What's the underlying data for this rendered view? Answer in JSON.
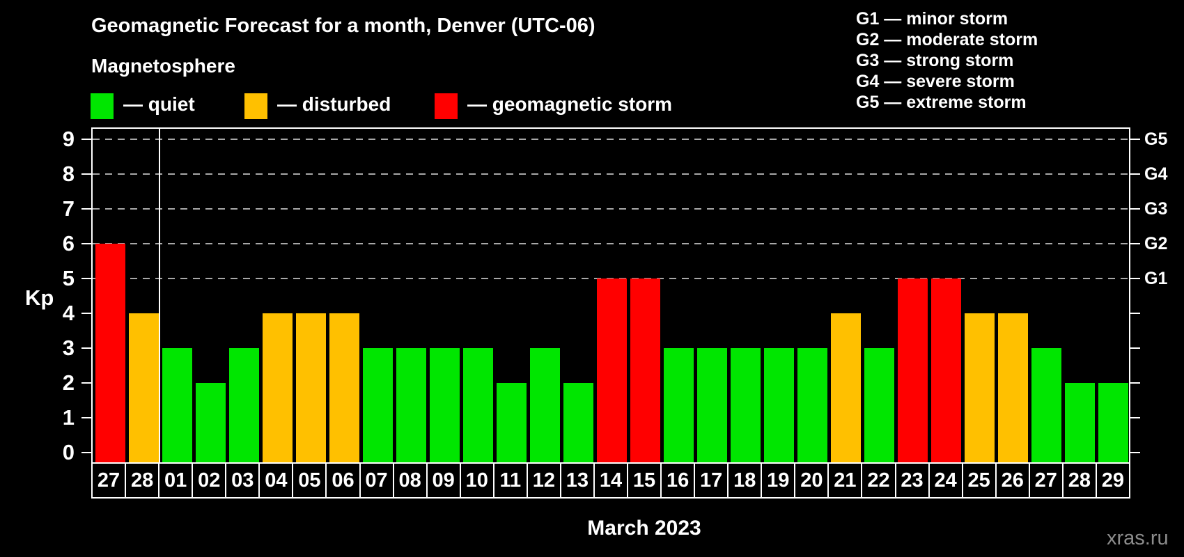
{
  "header": {
    "title": "Geomagnetic Forecast for a month, Denver (UTC-06)",
    "subtitle": "Magnetosphere"
  },
  "legend": {
    "items": [
      {
        "key": "quiet",
        "label": "— quiet",
        "color": "#00e600"
      },
      {
        "key": "disturbed",
        "label": "— disturbed",
        "color": "#ffc000"
      },
      {
        "key": "storm",
        "label": "— geomagnetic storm",
        "color": "#ff0000"
      }
    ]
  },
  "storm_scale": {
    "items": [
      "G1 — minor storm",
      "G2 — moderate storm",
      "G3 — strong storm",
      "G4 — severe storm",
      "G5 — extreme storm"
    ]
  },
  "chart_data": {
    "type": "bar",
    "title": "Geomagnetic Forecast for a month, Denver (UTC-06)",
    "ylabel": "Kp",
    "xlabel": "March 2023",
    "ylim": [
      -0.3,
      9.35
    ],
    "y_ticks": [
      0,
      1,
      2,
      3,
      4,
      5,
      6,
      7,
      8,
      9
    ],
    "gridlines_at_kp": [
      5,
      6,
      7,
      8,
      9
    ],
    "grid": "dashed-horizontal",
    "legend_position": "top",
    "right_axis": [
      {
        "label": "G1",
        "kp": 5
      },
      {
        "label": "G2",
        "kp": 6
      },
      {
        "label": "G3",
        "kp": 7
      },
      {
        "label": "G4",
        "kp": 8
      },
      {
        "label": "G5",
        "kp": 9
      }
    ],
    "categories": [
      "27",
      "28",
      "01",
      "02",
      "03",
      "04",
      "05",
      "06",
      "07",
      "08",
      "09",
      "10",
      "11",
      "12",
      "13",
      "14",
      "15",
      "16",
      "17",
      "18",
      "19",
      "20",
      "21",
      "22",
      "23",
      "24",
      "25",
      "26",
      "27",
      "28",
      "29"
    ],
    "values": [
      6,
      4,
      3,
      2,
      3,
      4,
      4,
      4,
      3,
      3,
      3,
      3,
      2,
      3,
      2,
      5,
      5,
      3,
      3,
      3,
      3,
      3,
      4,
      3,
      5,
      5,
      4,
      4,
      3,
      2,
      2
    ],
    "statuses": [
      "storm",
      "disturbed",
      "quiet",
      "quiet",
      "quiet",
      "disturbed",
      "disturbed",
      "disturbed",
      "quiet",
      "quiet",
      "quiet",
      "quiet",
      "quiet",
      "quiet",
      "quiet",
      "storm",
      "storm",
      "quiet",
      "quiet",
      "quiet",
      "quiet",
      "quiet",
      "disturbed",
      "quiet",
      "storm",
      "storm",
      "disturbed",
      "disturbed",
      "quiet",
      "quiet",
      "quiet"
    ],
    "colors": {
      "quiet": "#00e600",
      "disturbed": "#ffc000",
      "storm": "#ff0000"
    },
    "month_separator_after_index": 1
  },
  "footer": {
    "month_label": "March 2023",
    "watermark": "xras.ru"
  }
}
